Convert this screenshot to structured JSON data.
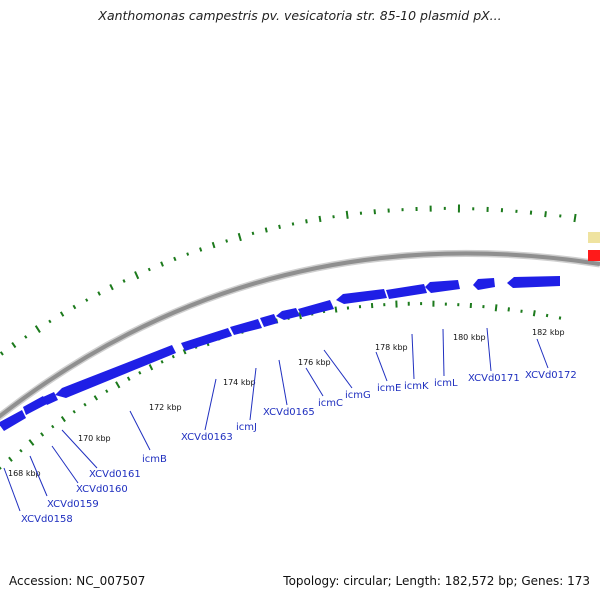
{
  "title": "Xanthomonas campestris pv. vesicatoria str. 85-10 plasmid pX...",
  "footer": {
    "accession": "Accession: NC_007507",
    "summary": "Topology: circular; Length: 182,572 bp; Genes: 173"
  },
  "colors": {
    "gene": "#1f1fe6",
    "backbone": "#8f8f8f",
    "tick": "#1c7a1c",
    "label": "#1f2fbf",
    "legend_yellow": "#efe3a0",
    "legend_red": "#ff1a1a"
  },
  "kbp_labels": [
    "168 kbp",
    "170 kbp",
    "172 kbp",
    "174 kbp",
    "176 kbp",
    "178 kbp",
    "180 kbp",
    "182 kbp"
  ],
  "gene_labels": [
    "XCVd0158",
    "XCVd0159",
    "XCVd0160",
    "XCVd0161",
    "icmB",
    "XCVd0163",
    "icmJ",
    "XCVd0165",
    "icmC",
    "icmG",
    "icmE",
    "icmK",
    "icmL",
    "XCVd0171",
    "XCVd0172"
  ]
}
